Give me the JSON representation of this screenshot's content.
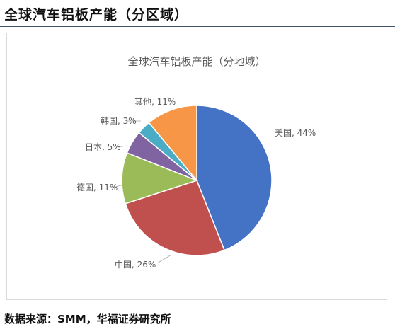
{
  "header": {
    "title": "全球汽车铝板产能（分区域）"
  },
  "footer": {
    "source": "数据来源：SMM，华福证券研究所"
  },
  "chart_data": {
    "type": "pie",
    "title": "全球汽车铝板产能（分地域）",
    "start_angle_deg": 0,
    "direction": "clockwise",
    "legend": "none",
    "slices": [
      {
        "label": "美国",
        "value": 44,
        "display": "美国, 44%",
        "color": "#4472c4"
      },
      {
        "label": "中国",
        "value": 26,
        "display": "中国, 26%",
        "color": "#c0504d"
      },
      {
        "label": "德国",
        "value": 11,
        "display": "德国, 11%",
        "color": "#9bbb59"
      },
      {
        "label": "日本",
        "value": 5,
        "display": "日本, 5%",
        "color": "#8064a2"
      },
      {
        "label": "韩国",
        "value": 3,
        "display": "韩国, 3%",
        "color": "#4bacc6"
      },
      {
        "label": "其他",
        "value": 11,
        "display": "其他, 11%",
        "color": "#f79646"
      }
    ]
  }
}
